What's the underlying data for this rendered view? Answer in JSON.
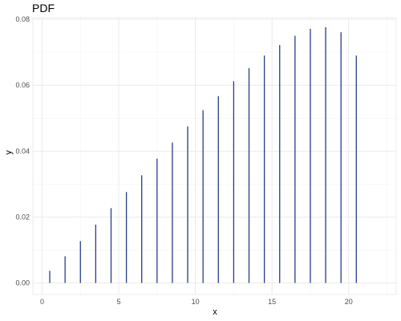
{
  "chart_data": {
    "type": "bar",
    "title": "PDF",
    "xlabel": "x",
    "ylabel": "y",
    "xlim": [
      -0.6,
      23.1
    ],
    "ylim": [
      -0.0035,
      0.0805
    ],
    "xticks": [
      0,
      5,
      10,
      15,
      20
    ],
    "xtick_labels": [
      "0",
      "5",
      "10",
      "15",
      "20"
    ],
    "yticks": [
      0.0,
      0.02,
      0.04,
      0.06,
      0.08
    ],
    "ytick_labels": [
      "0.00",
      "0.02",
      "0.04",
      "0.06",
      "0.08"
    ],
    "grid": true,
    "legend": "none",
    "color": "#283b8b",
    "x": [
      0.5,
      1.5,
      2.5,
      3.5,
      4.5,
      5.5,
      6.5,
      7.5,
      8.5,
      9.5,
      10.5,
      11.5,
      12.5,
      13.5,
      14.5,
      15.5,
      16.5,
      17.5,
      18.5,
      19.5,
      20.5
    ],
    "values": [
      0.0037,
      0.0081,
      0.0127,
      0.0177,
      0.0227,
      0.0276,
      0.0327,
      0.0377,
      0.0426,
      0.0475,
      0.0524,
      0.0567,
      0.0612,
      0.0652,
      0.069,
      0.0722,
      0.075,
      0.0771,
      0.0776,
      0.0761,
      0.069
    ]
  }
}
